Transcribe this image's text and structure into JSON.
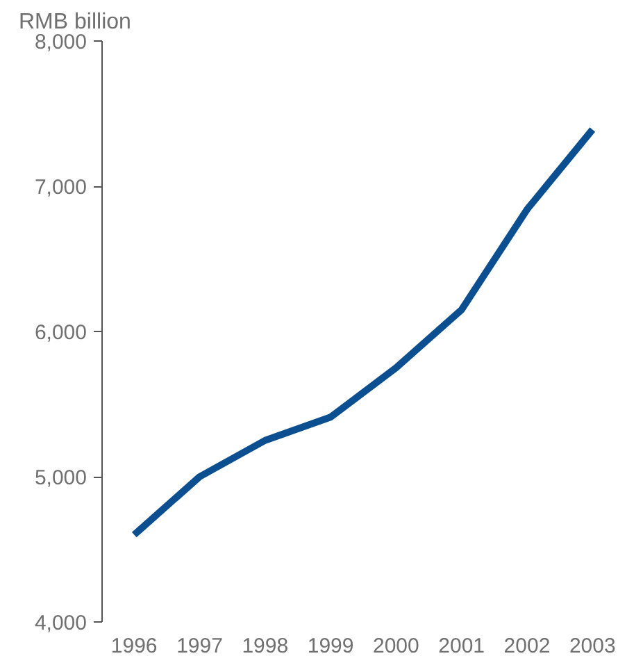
{
  "chart_data": {
    "type": "line",
    "ylabel": "RMB billion",
    "categories": [
      "1996",
      "1997",
      "1998",
      "1999",
      "2000",
      "2001",
      "2002",
      "2003"
    ],
    "series": [
      {
        "color": "#0b4f91",
        "values": [
          4600,
          5000,
          5250,
          5410,
          5750,
          6150,
          6840,
          7390
        ]
      }
    ],
    "ylim": [
      4000,
      8000
    ],
    "yticks": [
      {
        "value": 4000,
        "label": "4,000"
      },
      {
        "value": 5000,
        "label": "5,000"
      },
      {
        "value": 6000,
        "label": "6,000"
      },
      {
        "value": 7000,
        "label": "7,000"
      },
      {
        "value": 8000,
        "label": "8,000"
      }
    ],
    "grid": false,
    "marker": "none",
    "line_style": "solid"
  }
}
